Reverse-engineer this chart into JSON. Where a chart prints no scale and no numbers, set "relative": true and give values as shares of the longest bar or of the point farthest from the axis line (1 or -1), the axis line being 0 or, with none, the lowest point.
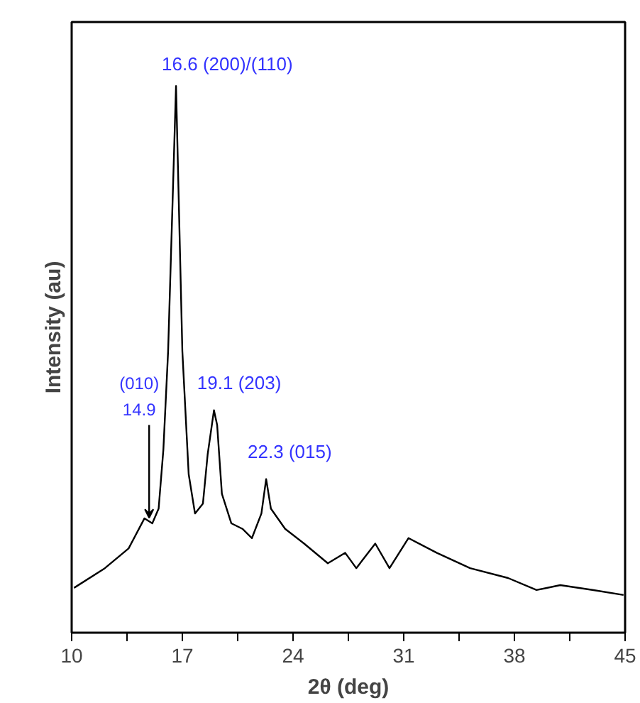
{
  "chart_data": {
    "type": "line",
    "relative": true,
    "xlabel": "2θ (deg)",
    "ylabel": "Intensity (au)",
    "x": [
      10.15,
      12.1,
      13.6,
      14.6,
      15.1,
      15.5,
      15.8,
      16.1,
      16.6,
      17.0,
      17.4,
      17.8,
      18.3,
      18.6,
      19.0,
      19.2,
      19.5,
      20.1,
      20.8,
      21.4,
      22.0,
      22.3,
      22.6,
      23.5,
      24.7,
      26.2,
      27.3,
      28.0,
      29.2,
      30.1,
      31.3,
      33.1,
      35.2,
      37.6,
      39.4,
      40.9,
      43.0,
      44.9
    ],
    "series": [
      {
        "color": "#000000",
        "values": [
          0.082,
          0.118,
          0.154,
          0.209,
          0.2,
          0.227,
          0.335,
          0.515,
          1.0,
          0.515,
          0.29,
          0.218,
          0.236,
          0.326,
          0.407,
          0.38,
          0.254,
          0.2,
          0.19,
          0.173,
          0.218,
          0.281,
          0.227,
          0.19,
          0.163,
          0.127,
          0.146,
          0.118,
          0.163,
          0.118,
          0.173,
          0.146,
          0.118,
          0.1,
          0.078,
          0.087,
          0.078,
          0.069
        ]
      }
    ],
    "xlim": [
      10,
      45
    ],
    "xticks": [
      10,
      {
        "value": 13.5,
        "label": null
      },
      17,
      {
        "value": 20.5,
        "label": null
      },
      24,
      {
        "value": 27.5,
        "label": null
      },
      31,
      {
        "value": 34.5,
        "label": null
      },
      38,
      {
        "value": 41.5,
        "label": null
      },
      45
    ],
    "annotations": [
      {
        "text": "16.6 (200)/(110)",
        "x": 16.6,
        "y": 1.0
      },
      {
        "text": "19.1 (203)",
        "x": 19.1,
        "y": 0.407
      },
      {
        "text": "22.3 (015)",
        "x": 22.3,
        "y": 0.281
      },
      {
        "text": "(010)\n14.9",
        "x": 14.9,
        "y": 0.21
      }
    ],
    "grid": false
  }
}
